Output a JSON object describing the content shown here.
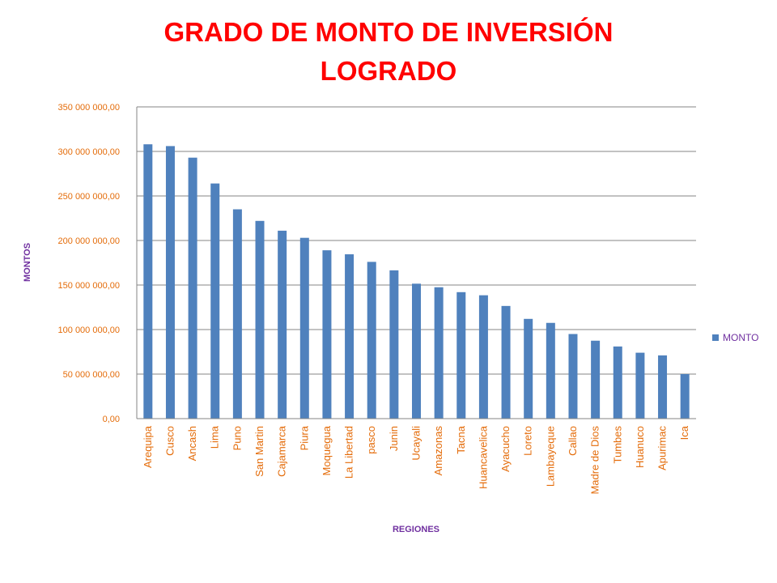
{
  "chart_data": {
    "type": "bar",
    "title_lines": [
      "GRADO DE MONTO DE INVERSIÓN",
      "LOGRADO"
    ],
    "xlabel": "REGIONES",
    "ylabel": "MONTOS",
    "ylim": [
      0,
      350000000
    ],
    "yticks": [
      0,
      50000000,
      100000000,
      150000000,
      200000000,
      250000000,
      300000000,
      350000000
    ],
    "ytick_labels": [
      "0,00",
      "50 000 000,00",
      "100 000 000,00",
      "150 000 000,00",
      "200 000 000,00",
      "250 000 000,00",
      "300 000 000,00",
      "350 000 000,00"
    ],
    "grid": true,
    "legend_position": "right",
    "categories": [
      "Arequipa",
      "Cusco",
      "Ancash",
      "Lima",
      "Puno",
      "San Martin",
      "Cajamarca",
      "Piura",
      "Moquegua",
      "La Libertad",
      "pasco",
      "Junin",
      "Ucayali",
      "Amazonas",
      "Tacna",
      "Huancavelica",
      "Ayacucho",
      "Loreto",
      "Lambayeque",
      "Callao",
      "Madre de Dios",
      "Tumbes",
      "Huanuco",
      "Apurimac",
      "Ica"
    ],
    "series": [
      {
        "name": "MONTO",
        "color": "#4f81bd",
        "values": [
          308000000,
          306000000,
          293000000,
          264000000,
          235000000,
          222000000,
          211000000,
          203000000,
          189000000,
          184500000,
          176000000,
          166500000,
          151500000,
          147500000,
          142000000,
          138500000,
          126500000,
          112000000,
          107500000,
          95000000,
          87500000,
          81000000,
          74000000,
          71000000,
          50000000
        ]
      }
    ]
  },
  "colors": {
    "title": "#ff0000",
    "tick_labels": "#e46c0a",
    "axis_titles": "#7030a0",
    "gridlines": "#868686"
  }
}
